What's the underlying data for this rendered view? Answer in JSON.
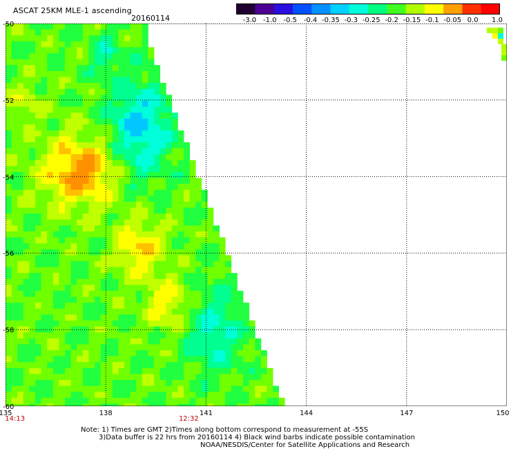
{
  "header": {
    "title": "ASCAT 25KM MLE-1 ascending",
    "date": "20160114"
  },
  "colorbar": {
    "labels": [
      "-3.0",
      "-1.0",
      "-0.5",
      "-0.4",
      "-0.35",
      "-0.3",
      "-0.25",
      "-0.2",
      "-0.15",
      "-0.1",
      "-0.05",
      "0.0",
      "1.0"
    ],
    "colors": [
      "#200030",
      "#4a0090",
      "#2a10e0",
      "#0050ff",
      "#0090ff",
      "#00d0ff",
      "#00ffd8",
      "#00ff80",
      "#40ff20",
      "#b0ff00",
      "#ffff00",
      "#ffa000",
      "#ff3000",
      "#ff0000"
    ]
  },
  "map": {
    "lat_labels": [
      "-50",
      "-52",
      "-54",
      "-56",
      "-58",
      "-60"
    ],
    "lon_labels": [
      "135",
      "138",
      "141",
      "144",
      "147",
      "150"
    ],
    "lat_range": [
      -60,
      -50
    ],
    "lon_range": [
      135,
      150
    ],
    "time_labels": [
      {
        "text": "14:13",
        "lon": 135.2
      },
      {
        "text": "12:32",
        "lon": 140.4
      }
    ]
  },
  "notes": [
    "Note: 1) Times are GMT 2)Times along bottom correspond to measurement at -55S",
    "3)Data buffer is 22 hrs from 20160114 4) Black wind barbs indicate possible contamination",
    "NOAA/NESDIS/Center for Satellite Applications and Research"
  ]
}
